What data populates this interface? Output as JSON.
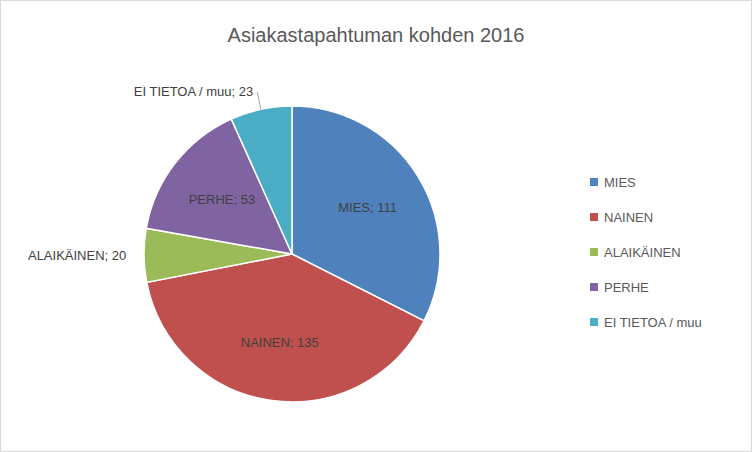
{
  "chart_data": {
    "type": "pie",
    "title": "Asiakastapahtuman kohden 2016",
    "categories": [
      "MIES",
      "NAINEN",
      "ALAIKÄINEN",
      "PERHE",
      "EI TIETOA / muu"
    ],
    "values": [
      111,
      135,
      20,
      53,
      23
    ],
    "value_labels": [
      "MIES; 111",
      "NAINEN; 135",
      "ALAIKÄINEN; 20",
      "PERHE; 53",
      "EI TIETOA / muu; 23"
    ],
    "colors": [
      "#4f81bd",
      "#c0504d",
      "#9bbb59",
      "#8064a2",
      "#4bacc6"
    ],
    "data_labels": true,
    "legend": "right"
  }
}
